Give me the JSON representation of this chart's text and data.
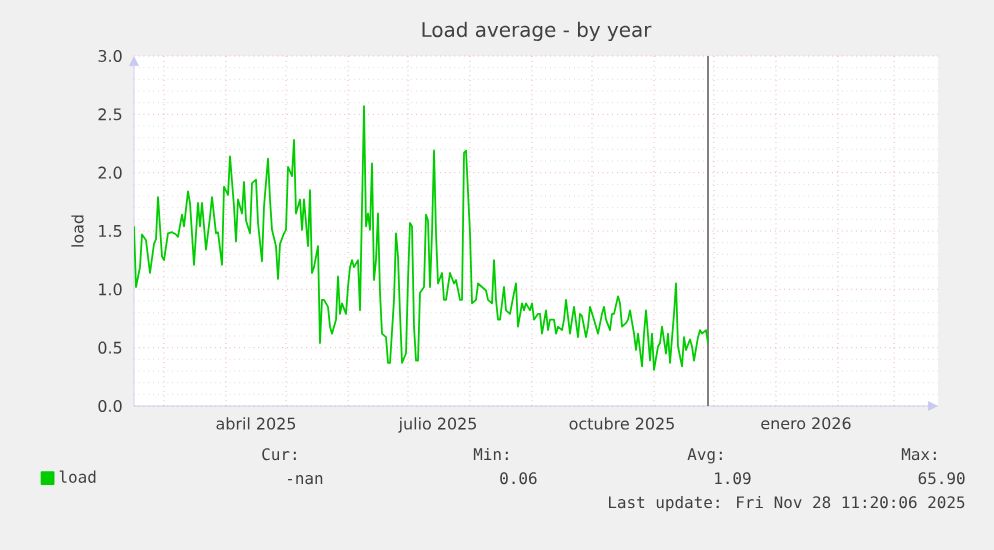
{
  "chart_data": {
    "type": "line",
    "title": "Load average - by year",
    "ylabel": "load",
    "xlim": [
      "2025-02-14",
      "2026-03-23"
    ],
    "ylim": [
      0,
      3
    ],
    "xticks": [
      {
        "value": "2025-03-01",
        "label": null
      },
      {
        "value": "2025-04-01",
        "label": null
      },
      {
        "value": "2025-05-01",
        "label": null
      },
      {
        "value": "2025-06-01",
        "label": null
      },
      {
        "value": "2025-07-01",
        "label": null
      },
      {
        "value": "2025-08-01",
        "label": null
      },
      {
        "value": "2025-09-01",
        "label": null
      },
      {
        "value": "2025-10-01",
        "label": null
      },
      {
        "value": "2025-11-01",
        "label": null
      },
      {
        "value": "2025-12-01",
        "label": null
      },
      {
        "value": "2026-01-01",
        "label": null
      },
      {
        "value": "2026-02-01",
        "label": null
      },
      {
        "value": "2026-03-01",
        "label": null
      },
      {
        "value": "2025-04-16",
        "label": "abril 2025"
      },
      {
        "value": "2025-07-16",
        "label": "julio 2025"
      },
      {
        "value": "2025-10-16",
        "label": "octubre 2025"
      },
      {
        "value": "2026-01-16",
        "label": "enero 2026"
      }
    ],
    "yticks": [
      {
        "value": 0,
        "label": "0.0"
      },
      {
        "value": 0.5,
        "label": "0.5"
      },
      {
        "value": 1,
        "label": "1.0"
      },
      {
        "value": 1.5,
        "label": "1.5"
      },
      {
        "value": 2,
        "label": "2.0"
      },
      {
        "value": 2.5,
        "label": "2.5"
      },
      {
        "value": 3,
        "label": "3.0"
      }
    ],
    "grid": true,
    "legend": "bottom",
    "ref_lines": [
      {
        "axis": "x",
        "value": "2025-11-28",
        "color": "#808080"
      }
    ],
    "annotations": [
      "Cur:",
      "Min:",
      "Avg:",
      "Max:",
      "-nan",
      "0.06",
      "1.09",
      "65.90",
      "Last update: Fri Nov 28 11:20:06 2025"
    ],
    "x": [
      "2025-02-14",
      "2025-02-15",
      "2025-02-17",
      "2025-02-18",
      "2025-02-20",
      "2025-02-22",
      "2025-02-24",
      "2025-02-25",
      "2025-02-26",
      "2025-02-28",
      "2025-03-01",
      "2025-03-03",
      "2025-03-05",
      "2025-03-07",
      "2025-03-08",
      "2025-03-10",
      "2025-03-11",
      "2025-03-13",
      "2025-03-14",
      "2025-03-16",
      "2025-03-18",
      "2025-03-19",
      "2025-03-20",
      "2025-03-22",
      "2025-03-24",
      "2025-03-25",
      "2025-03-27",
      "2025-03-28",
      "2025-03-30",
      "2025-03-31",
      "2025-04-02",
      "2025-04-03",
      "2025-04-05",
      "2025-04-06",
      "2025-04-07",
      "2025-04-09",
      "2025-04-10",
      "2025-04-11",
      "2025-04-13",
      "2025-04-14",
      "2025-04-16",
      "2025-04-17",
      "2025-04-19",
      "2025-04-20",
      "2025-04-22",
      "2025-04-23",
      "2025-04-24",
      "2025-04-26",
      "2025-04-27",
      "2025-04-28",
      "2025-04-30",
      "2025-05-01",
      "2025-05-02",
      "2025-05-04",
      "2025-05-05",
      "2025-05-06",
      "2025-05-08",
      "2025-05-09",
      "2025-05-10",
      "2025-05-12",
      "2025-05-13",
      "2025-05-14",
      "2025-05-15",
      "2025-05-17",
      "2025-05-18",
      "2025-05-19",
      "2025-05-20",
      "2025-05-22",
      "2025-05-23",
      "2025-05-24",
      "2025-05-26",
      "2025-05-27",
      "2025-05-28",
      "2025-05-29",
      "2025-05-31",
      "2025-06-01",
      "2025-06-02",
      "2025-06-03",
      "2025-06-04",
      "2025-06-06",
      "2025-06-07",
      "2025-06-09",
      "2025-06-10",
      "2025-06-11",
      "2025-06-12",
      "2025-06-13",
      "2025-06-14",
      "2025-06-15",
      "2025-06-16",
      "2025-06-17",
      "2025-06-18",
      "2025-06-20",
      "2025-06-21",
      "2025-06-22",
      "2025-06-24",
      "2025-06-25",
      "2025-06-26",
      "2025-06-27",
      "2025-06-28",
      "2025-06-30",
      "2025-07-01",
      "2025-07-02",
      "2025-07-03",
      "2025-07-04",
      "2025-07-05",
      "2025-07-06",
      "2025-07-07",
      "2025-07-09",
      "2025-07-10",
      "2025-07-11",
      "2025-07-12",
      "2025-07-13",
      "2025-07-14",
      "2025-07-15",
      "2025-07-16",
      "2025-07-18",
      "2025-07-19",
      "2025-07-20",
      "2025-07-22",
      "2025-07-24",
      "2025-07-25",
      "2025-07-27",
      "2025-07-28",
      "2025-07-29",
      "2025-07-30",
      "2025-08-01",
      "2025-08-02",
      "2025-08-04",
      "2025-08-05",
      "2025-08-07",
      "2025-08-09",
      "2025-08-10",
      "2025-08-12",
      "2025-08-13",
      "2025-08-14",
      "2025-08-15",
      "2025-08-16",
      "2025-08-18",
      "2025-08-19",
      "2025-08-21",
      "2025-08-23",
      "2025-08-24",
      "2025-08-25",
      "2025-08-27",
      "2025-08-28",
      "2025-08-29",
      "2025-08-31",
      "2025-09-01",
      "2025-09-02",
      "2025-09-04",
      "2025-09-05",
      "2025-09-06",
      "2025-09-08",
      "2025-09-09",
      "2025-09-10",
      "2025-09-12",
      "2025-09-13",
      "2025-09-14",
      "2025-09-16",
      "2025-09-17",
      "2025-09-18",
      "2025-09-20",
      "2025-09-21",
      "2025-09-22",
      "2025-09-24",
      "2025-09-25",
      "2025-09-26",
      "2025-09-28",
      "2025-09-29",
      "2025-09-30",
      "2025-10-02",
      "2025-10-03",
      "2025-10-04",
      "2025-10-06",
      "2025-10-07",
      "2025-10-08",
      "2025-10-10",
      "2025-10-11",
      "2025-10-12",
      "2025-10-14",
      "2025-10-15",
      "2025-10-16",
      "2025-10-18",
      "2025-10-19",
      "2025-10-20",
      "2025-10-22",
      "2025-10-23",
      "2025-10-24",
      "2025-10-26",
      "2025-10-27",
      "2025-10-28",
      "2025-10-30",
      "2025-10-31",
      "2025-11-01",
      "2025-11-03",
      "2025-11-04",
      "2025-11-05",
      "2025-11-07",
      "2025-11-08",
      "2025-11-09",
      "2025-11-11",
      "2025-11-12",
      "2025-11-13",
      "2025-11-15",
      "2025-11-16",
      "2025-11-17",
      "2025-11-19",
      "2025-11-20",
      "2025-11-21",
      "2025-11-23",
      "2025-11-24",
      "2025-11-25",
      "2025-11-27",
      "2025-11-28"
    ],
    "series": [
      {
        "name": "load",
        "color": "#00cc00",
        "values": [
          1.54,
          1.02,
          1.19,
          1.47,
          1.42,
          1.14,
          1.39,
          1.43,
          1.79,
          1.28,
          1.25,
          1.48,
          1.49,
          1.47,
          1.45,
          1.64,
          1.54,
          1.84,
          1.74,
          1.21,
          1.74,
          1.54,
          1.74,
          1.34,
          1.62,
          1.79,
          1.48,
          1.49,
          1.21,
          1.88,
          1.81,
          2.14,
          1.71,
          1.41,
          1.77,
          1.65,
          1.92,
          1.59,
          1.48,
          1.91,
          1.94,
          1.57,
          1.24,
          1.71,
          2.12,
          1.77,
          1.51,
          1.37,
          1.09,
          1.39,
          1.48,
          1.51,
          2.05,
          1.97,
          2.28,
          1.65,
          1.77,
          1.51,
          1.77,
          1.37,
          1.85,
          1.14,
          1.19,
          1.37,
          0.54,
          0.91,
          0.91,
          0.85,
          0.68,
          0.62,
          0.74,
          1.11,
          0.79,
          0.88,
          0.79,
          1.02,
          1.19,
          1.25,
          1.19,
          1.25,
          0.82,
          2.57,
          1.54,
          1.65,
          1.51,
          2.08,
          1.08,
          1.25,
          1.65,
          0.97,
          0.62,
          0.59,
          0.37,
          0.37,
          0.91,
          1.48,
          1.28,
          0.79,
          0.37,
          0.45,
          1.08,
          1.57,
          1.54,
          0.68,
          0.39,
          0.39,
          0.97,
          1.02,
          1.64,
          1.59,
          1.02,
          1.48,
          2.19,
          1.48,
          1.05,
          1.14,
          0.91,
          0.91,
          1.14,
          1.05,
          1.08,
          0.91,
          0.91,
          2.17,
          2.19,
          1.48,
          0.88,
          0.91,
          1.05,
          1.02,
          0.99,
          0.91,
          0.88,
          1.25,
          0.91,
          0.74,
          0.74,
          1.02,
          0.82,
          0.79,
          0.97,
          1.05,
          0.68,
          0.88,
          0.82,
          0.88,
          0.82,
          0.88,
          0.74,
          0.79,
          0.79,
          0.62,
          0.82,
          0.65,
          0.74,
          0.74,
          0.62,
          0.68,
          0.65,
          0.74,
          0.91,
          0.62,
          0.74,
          0.85,
          0.59,
          0.79,
          0.77,
          0.59,
          0.68,
          0.85,
          0.74,
          0.68,
          0.62,
          0.79,
          0.85,
          0.74,
          0.65,
          0.79,
          0.79,
          0.94,
          0.88,
          0.68,
          0.71,
          0.74,
          0.82,
          0.62,
          0.48,
          0.62,
          0.34,
          0.62,
          0.82,
          0.39,
          0.62,
          0.31,
          0.51,
          0.54,
          0.68,
          0.45,
          0.62,
          0.37,
          0.79,
          1.05,
          0.51,
          0.34,
          0.59,
          0.48,
          0.57,
          0.51,
          0.39,
          0.59,
          0.65,
          0.62,
          0.65,
          0.54
        ]
      }
    ]
  }
}
